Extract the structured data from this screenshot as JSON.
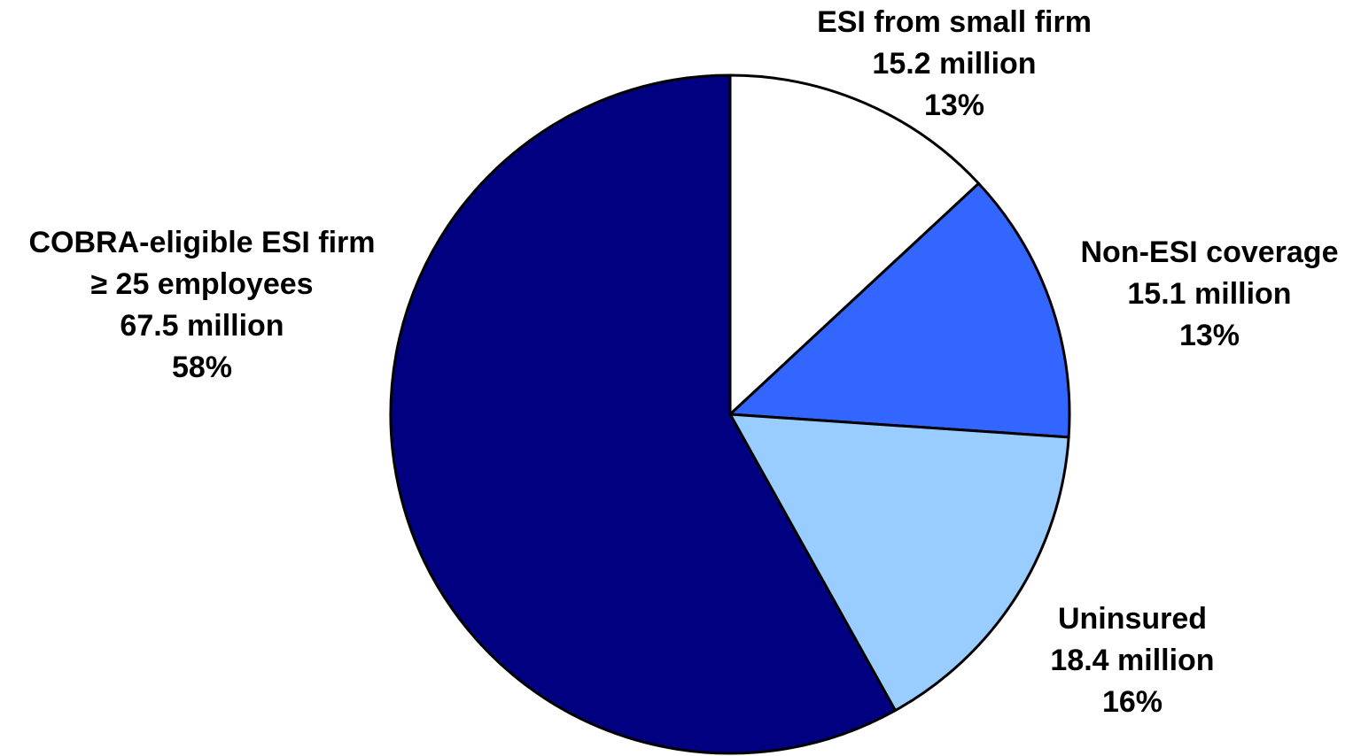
{
  "chart_data": {
    "type": "pie",
    "start_angle_deg": 0,
    "direction": "clockwise",
    "slices": [
      {
        "name_lines": [
          "ESI from small firm"
        ],
        "value_label": "15.2 million",
        "value": 15.2,
        "percent_label": "13%",
        "percent": 13,
        "color": "#FFFFFF"
      },
      {
        "name_lines": [
          "Non-ESI coverage"
        ],
        "value_label": "15.1 million",
        "value": 15.1,
        "percent_label": "13%",
        "percent": 13,
        "color": "#3366FF"
      },
      {
        "name_lines": [
          "Uninsured"
        ],
        "value_label": "18.4 million",
        "value": 18.4,
        "percent_label": "16%",
        "percent": 16,
        "color": "#99CCFF"
      },
      {
        "name_lines": [
          "COBRA-eligible ESI firm",
          "≥ 25 employees"
        ],
        "value_label": "67.5 million",
        "value": 67.5,
        "percent_label": "58%",
        "percent": 58,
        "color": "#000080"
      }
    ],
    "outline_color": "#000000"
  }
}
